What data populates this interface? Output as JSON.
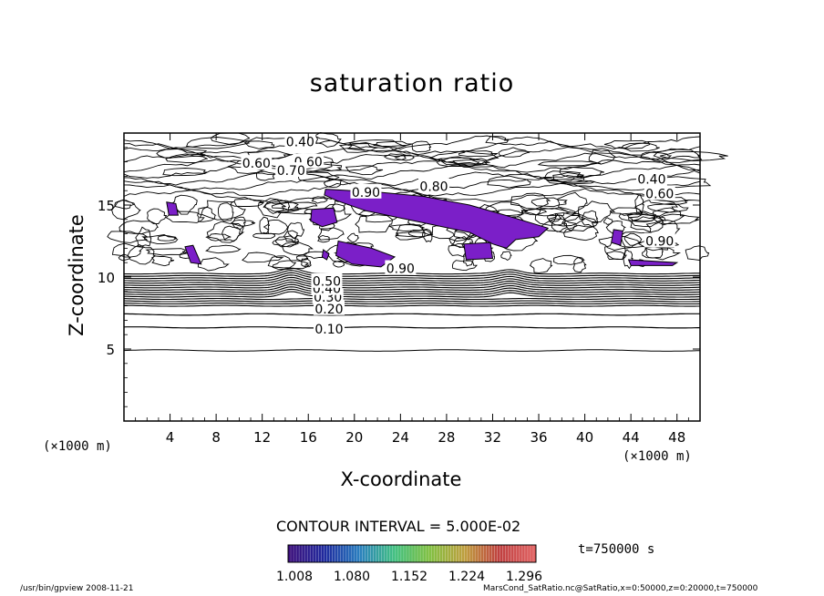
{
  "chart_data": {
    "type": "contour",
    "title": "saturation ratio",
    "xlabel": "X-coordinate",
    "ylabel": "Z-coordinate",
    "x_unit": "(×1000 m)",
    "xlim": [
      0,
      50
    ],
    "ylim": [
      0,
      20
    ],
    "x_ticks": [
      4,
      8,
      12,
      16,
      20,
      24,
      28,
      32,
      36,
      40,
      44,
      48
    ],
    "y_ticks": [
      5,
      10,
      15
    ],
    "contour_interval_text": "CONTOUR INTERVAL = 5.000E-02",
    "contour_labels": [
      {
        "text": "0.10",
        "x": 17.8,
        "y": 6.4
      },
      {
        "text": "0.20",
        "x": 17.8,
        "y": 7.8
      },
      {
        "text": "0.30",
        "x": 17.7,
        "y": 8.6
      },
      {
        "text": "0.40",
        "x": 17.6,
        "y": 9.2
      },
      {
        "text": "0.50",
        "x": 17.6,
        "y": 9.7
      },
      {
        "text": "0.90",
        "x": 24.0,
        "y": 10.6
      },
      {
        "text": "0.40",
        "x": 15.3,
        "y": 19.4
      },
      {
        "text": "0.60",
        "x": 11.5,
        "y": 17.9
      },
      {
        "text": "0.60",
        "x": 16.0,
        "y": 18.0
      },
      {
        "text": "0.70",
        "x": 14.5,
        "y": 17.4
      },
      {
        "text": "0.80",
        "x": 26.9,
        "y": 16.3
      },
      {
        "text": "0.90",
        "x": 21.0,
        "y": 15.9
      },
      {
        "text": "0.40",
        "x": 45.8,
        "y": 16.8
      },
      {
        "text": "0.60",
        "x": 46.5,
        "y": 15.8
      },
      {
        "text": "0.90",
        "x": 46.5,
        "y": 12.5
      }
    ],
    "colorbar": {
      "ticks": [
        "1.008",
        "1.080",
        "1.152",
        "1.224",
        "1.296"
      ],
      "colors": [
        "#3a0d7a",
        "#1f2a9e",
        "#2a7fbf",
        "#3fbf7f",
        "#7fbf3f",
        "#bf9f3f",
        "#bf3f3f",
        "#e06060"
      ]
    },
    "supersaturated_fill_color": "#7b1fc8",
    "time_label": "t=750000  s"
  },
  "footer": {
    "left": "/usr/bin/gpview   2008-11-21",
    "right": "MarsCond_SatRatio.nc@SatRatio,x=0:50000,z=0:20000,t=750000"
  }
}
